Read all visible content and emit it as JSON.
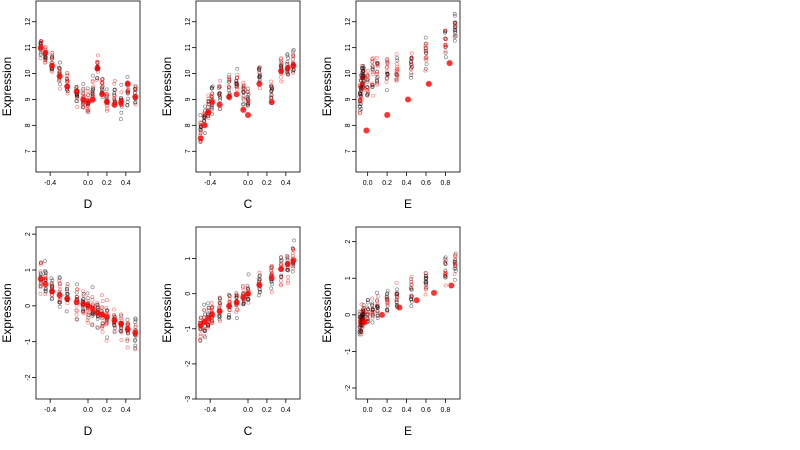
{
  "colors": {
    "black_series": "#000000",
    "red_series": "#ff0000",
    "fit_points": "#ff0000",
    "background": "#ffffff"
  },
  "chart_data": [
    {
      "type": "scatter",
      "xlabel": "D",
      "ylabel": "Expression",
      "xlim": [
        -0.55,
        0.55
      ],
      "ylim": [
        6.2,
        12.8
      ],
      "xticks": [
        -0.4,
        0.0,
        0.2,
        0.4
      ],
      "xticklabels": [
        "-0.4",
        "0.0",
        "0.2",
        "0.4"
      ],
      "yticks": [
        7,
        8,
        9,
        10,
        11,
        12
      ],
      "yticklabels": [
        "7",
        "8",
        "9",
        "10",
        "11",
        "12"
      ],
      "x_groups": [
        -0.5,
        -0.45,
        -0.38,
        -0.3,
        -0.22,
        -0.12,
        -0.05,
        0.0,
        0.05,
        0.1,
        0.15,
        0.2,
        0.28,
        0.35,
        0.42,
        0.5
      ],
      "series": [
        {
          "center": [
            11.0,
            10.7,
            10.3,
            10.0,
            9.6,
            9.2,
            9.0,
            8.9,
            9.3,
            10.2,
            9.5,
            9.0,
            9.1,
            8.9,
            9.4,
            9.2
          ],
          "spread": 1.0
        },
        {
          "fit": [
            11.0,
            10.8,
            10.3,
            9.9,
            9.5,
            9.3,
            9.0,
            8.9,
            9.0,
            10.2,
            9.2,
            8.9,
            8.8,
            8.9,
            9.6,
            9.1
          ]
        }
      ]
    },
    {
      "type": "scatter",
      "xlabel": "C",
      "ylabel": "Expression",
      "xlim": [
        -0.55,
        0.55
      ],
      "ylim": [
        6.2,
        12.8
      ],
      "xticks": [
        -0.4,
        0.0,
        0.2,
        0.4
      ],
      "xticklabels": [
        "-0.4",
        "0.0",
        "0.2",
        "0.4"
      ],
      "yticks": [
        7,
        8,
        9,
        10,
        11,
        12
      ],
      "yticklabels": [
        "7",
        "8",
        "9",
        "10",
        "11",
        "12"
      ],
      "x_groups": [
        -0.5,
        -0.46,
        -0.42,
        -0.38,
        -0.3,
        -0.2,
        -0.12,
        -0.05,
        0.0,
        0.12,
        0.25,
        0.35,
        0.42,
        0.48
      ],
      "series": [
        {
          "center": [
            7.8,
            8.3,
            8.7,
            9.0,
            9.2,
            9.4,
            9.6,
            9.2,
            9.0,
            9.8,
            9.3,
            10.2,
            10.3,
            10.5
          ],
          "spread": 1.1
        },
        {
          "fit": [
            7.5,
            8.0,
            8.5,
            8.9,
            8.8,
            9.1,
            9.2,
            8.6,
            8.4,
            9.6,
            8.9,
            10.1,
            10.2,
            10.3
          ]
        }
      ]
    },
    {
      "type": "scatter",
      "xlabel": "E",
      "ylabel": "Expression",
      "xlim": [
        -0.12,
        0.95
      ],
      "ylim": [
        6.2,
        12.8
      ],
      "xticks": [
        0.0,
        0.2,
        0.4,
        0.6,
        0.8
      ],
      "xticklabels": [
        "0.0",
        "0.2",
        "0.4",
        "0.6",
        "0.8"
      ],
      "yticks": [
        7,
        8,
        9,
        10,
        11,
        12
      ],
      "yticklabels": [
        "7",
        "8",
        "9",
        "10",
        "11",
        "12"
      ],
      "x_groups": [
        -0.08,
        -0.07,
        -0.06,
        -0.05,
        -0.04,
        0.0,
        0.05,
        0.1,
        0.2,
        0.3,
        0.45,
        0.6,
        0.8,
        0.9
      ],
      "series": [
        {
          "center": [
            9.0,
            9.3,
            9.6,
            9.8,
            9.9,
            9.7,
            9.9,
            10.0,
            10.1,
            10.2,
            10.4,
            10.7,
            11.2,
            11.8
          ],
          "spread": 1.2
        },
        {
          "fit": [
            7.8,
            8.4,
            9.0,
            9.6,
            10.4
          ]
        }
      ]
    },
    {
      "type": "scatter",
      "xlabel": "D",
      "ylabel": "Expression",
      "xlim": [
        -0.55,
        0.55
      ],
      "ylim": [
        -2.6,
        2.2
      ],
      "xticks": [
        -0.4,
        0.0,
        0.2,
        0.4
      ],
      "xticklabels": [
        "-0.4",
        "0.0",
        "0.2",
        "0.4"
      ],
      "yticks": [
        -2,
        -1,
        0,
        1,
        2
      ],
      "yticklabels": [
        "-2",
        "-1",
        "0",
        "1",
        "2"
      ],
      "x_groups": [
        -0.5,
        -0.45,
        -0.38,
        -0.3,
        -0.22,
        -0.12,
        -0.05,
        0.0,
        0.05,
        0.1,
        0.15,
        0.2,
        0.28,
        0.35,
        0.42,
        0.5
      ],
      "series": [
        {
          "center": [
            0.8,
            0.7,
            0.5,
            0.4,
            0.3,
            0.2,
            0.1,
            0.0,
            -0.1,
            -0.2,
            -0.3,
            -0.35,
            -0.45,
            -0.55,
            -0.65,
            -0.8
          ],
          "spread": 0.9
        },
        {
          "fit": [
            0.75,
            0.6,
            0.4,
            0.3,
            0.2,
            0.1,
            0.05,
            0.0,
            -0.1,
            -0.2,
            -0.25,
            -0.3,
            -0.4,
            -0.5,
            -0.65,
            -0.75
          ]
        }
      ]
    },
    {
      "type": "scatter",
      "xlabel": "C",
      "ylabel": "Expression",
      "xlim": [
        -0.55,
        0.55
      ],
      "ylim": [
        -3.0,
        1.9
      ],
      "xticks": [
        -0.4,
        0.0,
        0.2,
        0.4
      ],
      "xticklabels": [
        "-0.4",
        "0.0",
        "0.2",
        "0.4"
      ],
      "yticks": [
        -3,
        -2,
        -1,
        0,
        1
      ],
      "yticklabels": [
        "-3",
        "-2",
        "-1",
        "0",
        "1"
      ],
      "x_groups": [
        -0.5,
        -0.46,
        -0.42,
        -0.38,
        -0.3,
        -0.2,
        -0.12,
        -0.05,
        0.0,
        0.12,
        0.25,
        0.35,
        0.42,
        0.48
      ],
      "series": [
        {
          "center": [
            -0.9,
            -0.8,
            -0.7,
            -0.55,
            -0.45,
            -0.3,
            -0.2,
            -0.1,
            0.0,
            0.25,
            0.4,
            0.6,
            0.8,
            0.95
          ],
          "spread": 0.8
        },
        {
          "fit": [
            -0.9,
            -0.8,
            -0.7,
            -0.6,
            -0.5,
            -0.35,
            -0.25,
            -0.1,
            0.0,
            0.25,
            0.45,
            0.7,
            0.85,
            0.95
          ]
        }
      ]
    },
    {
      "type": "scatter",
      "xlabel": "E",
      "ylabel": "Expression",
      "xlim": [
        -0.12,
        0.95
      ],
      "ylim": [
        -2.3,
        2.4
      ],
      "xticks": [
        0.0,
        0.2,
        0.4,
        0.6,
        0.8
      ],
      "xticklabels": [
        "0.0",
        "0.2",
        "0.4",
        "0.6",
        "0.8"
      ],
      "yticks": [
        -2,
        -1,
        0,
        1,
        2
      ],
      "yticklabels": [
        "-2",
        "-1",
        "0",
        "1",
        "2"
      ],
      "x_groups": [
        -0.08,
        -0.07,
        -0.06,
        -0.05,
        -0.04,
        0.0,
        0.05,
        0.1,
        0.2,
        0.3,
        0.45,
        0.6,
        0.8,
        0.9
      ],
      "series": [
        {
          "center": [
            -0.3,
            -0.2,
            -0.1,
            0.0,
            0.0,
            0.1,
            0.15,
            0.25,
            0.35,
            0.5,
            0.7,
            0.9,
            1.2,
            1.4
          ],
          "spread": 0.7
        },
        {
          "fit": [
            -0.2,
            0.0,
            0.2,
            0.4,
            0.6,
            0.8
          ]
        }
      ]
    }
  ]
}
